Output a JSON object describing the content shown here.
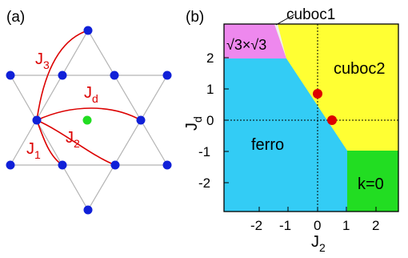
{
  "panel_a": {
    "label": "(a)",
    "couplings": {
      "j1": {
        "main": "J",
        "sub": "1"
      },
      "j2": {
        "main": "J",
        "sub": "2"
      },
      "j3": {
        "main": "J",
        "sub": "3"
      },
      "jd": {
        "main": "J",
        "sub": "d"
      }
    },
    "colors": {
      "site": "#1020d8",
      "center_site": "#22dd22",
      "bond": "#b4b4b4",
      "coupling": "#dc0000"
    }
  },
  "panel_b": {
    "label": "(b)",
    "x_axis": {
      "main": "J",
      "sub": "2",
      "ticks": [
        "-2",
        "-1",
        "0",
        "1",
        "2"
      ]
    },
    "y_axis": {
      "main": "J",
      "sub": "d",
      "ticks": [
        "-2",
        "-1",
        "0",
        "1",
        "2"
      ]
    },
    "regions": {
      "cuboc1": "cuboc1",
      "sqrt3": "√3×√3",
      "cuboc2": "cuboc2",
      "ferro": "ferro",
      "k0": "k=0"
    },
    "colors": {
      "ferro": "#33ccf5",
      "cuboc2": "#ffff33",
      "sqrt3": "#ee88ee",
      "k0": "#22dd22",
      "points": "#dd0000"
    },
    "points": [
      {
        "J2": 0.0,
        "Jd": 0.85
      },
      {
        "J2": 0.5,
        "Jd": 0.0
      }
    ]
  }
}
